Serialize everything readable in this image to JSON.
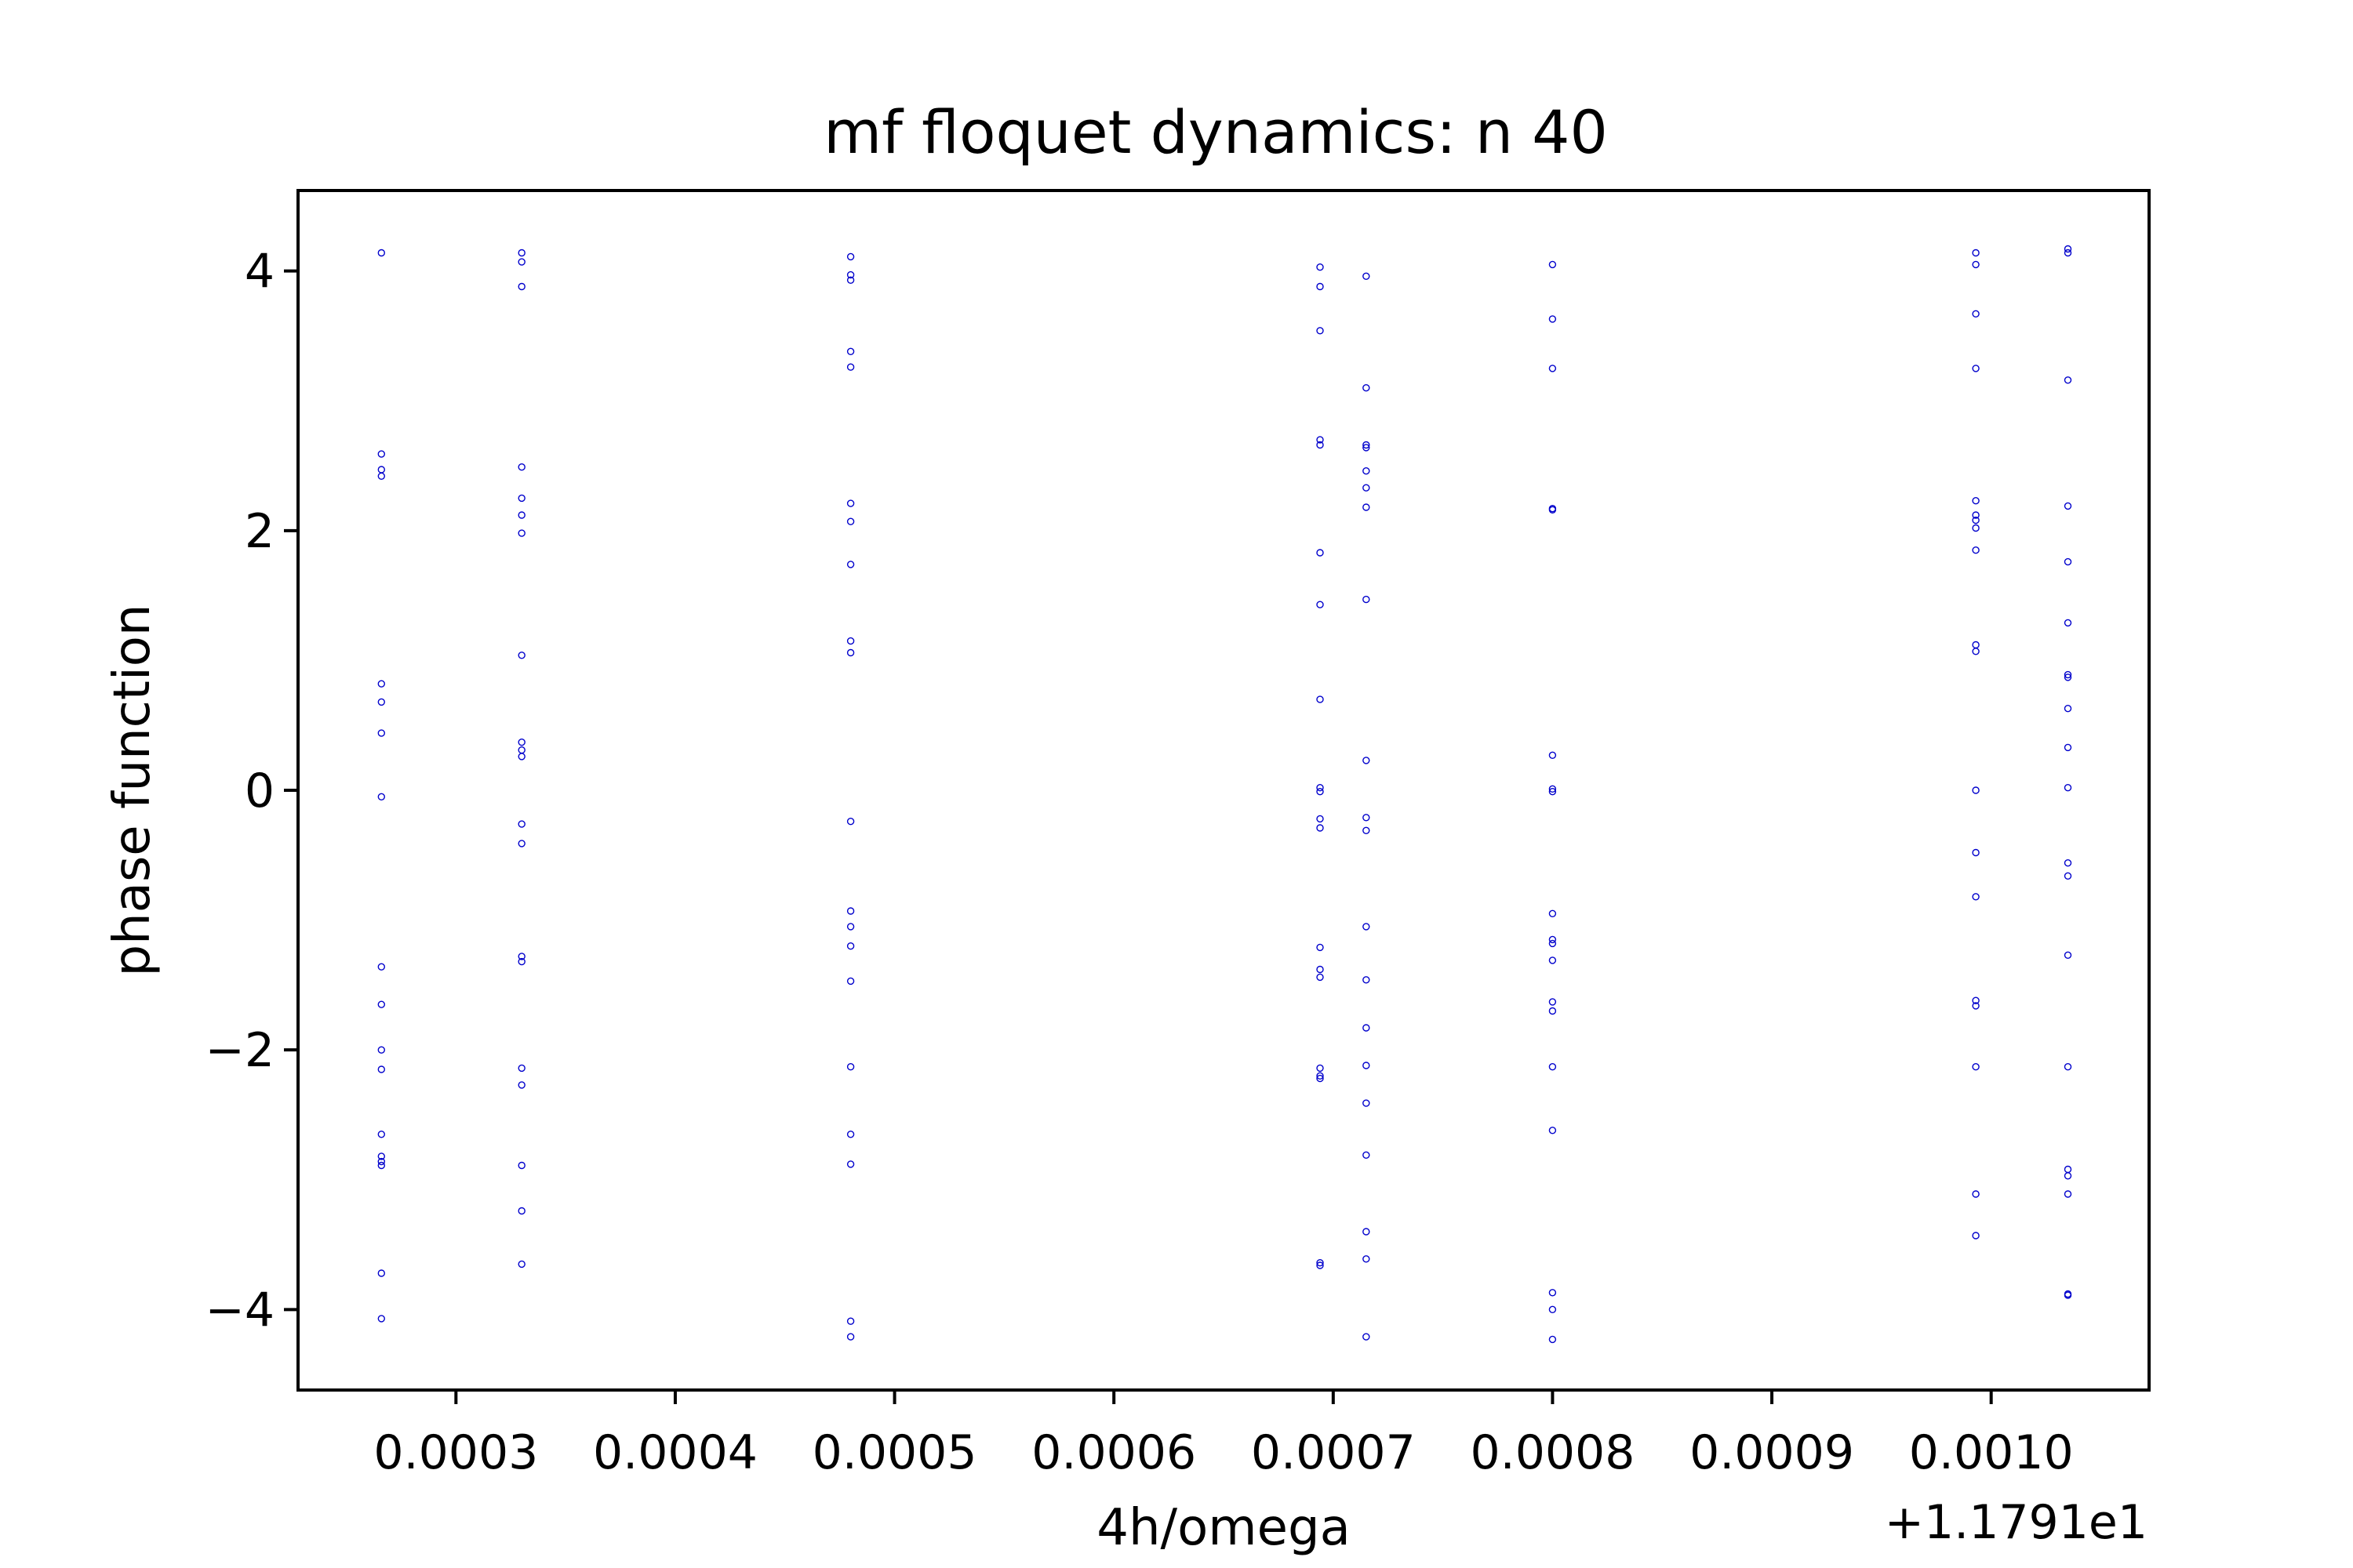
{
  "chart_data": {
    "type": "scatter",
    "title": "mf floquet dynamics: n 40",
    "xlabel": "4h/omega",
    "ylabel": "phase function",
    "x_offset_label": "+1.1791e1",
    "xlim": [
      0.000228,
      0.001072
    ],
    "ylim": [
      -4.62,
      4.62
    ],
    "xticks": [
      0.0003,
      0.0004,
      0.0005,
      0.0006,
      0.0007,
      0.0008,
      0.0009,
      0.001
    ],
    "xtick_labels": [
      "0.0003",
      "0.0004",
      "0.0005",
      "0.0006",
      "0.0007",
      "0.0008",
      "0.0009",
      "0.0010"
    ],
    "yticks": [
      -4,
      -2,
      0,
      2,
      4
    ],
    "ytick_labels": [
      "−4",
      "−2",
      "0",
      "2",
      "4"
    ],
    "grid": false,
    "marker_color": "#0000cc",
    "marker": "hollow-circle",
    "series": [
      {
        "points": [
          [
            0.000266,
            4.14
          ],
          [
            0.000266,
            2.59
          ],
          [
            0.000266,
            2.47
          ],
          [
            0.000266,
            2.42
          ],
          [
            0.000266,
            0.82
          ],
          [
            0.000266,
            0.68
          ],
          [
            0.000266,
            0.44
          ],
          [
            0.000266,
            -0.05
          ],
          [
            0.000266,
            -1.36
          ],
          [
            0.000266,
            -1.65
          ],
          [
            0.000266,
            -2.0
          ],
          [
            0.000266,
            -2.15
          ],
          [
            0.000266,
            -2.65
          ],
          [
            0.000266,
            -2.82
          ],
          [
            0.000266,
            -2.86
          ],
          [
            0.000266,
            -2.89
          ],
          [
            0.000266,
            -3.72
          ],
          [
            0.000266,
            -4.07
          ],
          [
            0.00033,
            4.14
          ],
          [
            0.00033,
            4.07
          ],
          [
            0.00033,
            3.88
          ],
          [
            0.00033,
            2.49
          ],
          [
            0.00033,
            2.25
          ],
          [
            0.00033,
            2.12
          ],
          [
            0.00033,
            1.98
          ],
          [
            0.00033,
            1.04
          ],
          [
            0.00033,
            0.37
          ],
          [
            0.00033,
            0.31
          ],
          [
            0.00033,
            0.26
          ],
          [
            0.00033,
            -0.26
          ],
          [
            0.00033,
            -0.41
          ],
          [
            0.00033,
            -1.28
          ],
          [
            0.00033,
            -1.32
          ],
          [
            0.00033,
            -2.14
          ],
          [
            0.00033,
            -2.27
          ],
          [
            0.00033,
            -2.89
          ],
          [
            0.00033,
            -3.24
          ],
          [
            0.00033,
            -3.65
          ],
          [
            0.00048,
            4.11
          ],
          [
            0.00048,
            3.97
          ],
          [
            0.00048,
            3.93
          ],
          [
            0.00048,
            3.38
          ],
          [
            0.00048,
            3.26
          ],
          [
            0.00048,
            2.21
          ],
          [
            0.00048,
            2.07
          ],
          [
            0.00048,
            1.74
          ],
          [
            0.00048,
            1.15
          ],
          [
            0.00048,
            1.06
          ],
          [
            0.00048,
            -0.24
          ],
          [
            0.00048,
            -0.93
          ],
          [
            0.00048,
            -1.05
          ],
          [
            0.00048,
            -1.2
          ],
          [
            0.00048,
            -1.47
          ],
          [
            0.00048,
            -2.13
          ],
          [
            0.00048,
            -2.65
          ],
          [
            0.00048,
            -2.88
          ],
          [
            0.00048,
            -4.09
          ],
          [
            0.00048,
            -4.21
          ],
          [
            0.000694,
            4.03
          ],
          [
            0.000694,
            3.88
          ],
          [
            0.000694,
            3.54
          ],
          [
            0.000694,
            2.7
          ],
          [
            0.000694,
            2.66
          ],
          [
            0.000694,
            1.83
          ],
          [
            0.000694,
            1.43
          ],
          [
            0.000694,
            0.7
          ],
          [
            0.000694,
            0.02
          ],
          [
            0.000694,
            -0.01
          ],
          [
            0.000694,
            -0.22
          ],
          [
            0.000694,
            -0.29
          ],
          [
            0.000694,
            -1.21
          ],
          [
            0.000694,
            -1.38
          ],
          [
            0.000694,
            -1.44
          ],
          [
            0.000694,
            -2.14
          ],
          [
            0.000694,
            -2.2
          ],
          [
            0.000694,
            -2.22
          ],
          [
            0.000694,
            -3.64
          ],
          [
            0.000694,
            -3.66
          ],
          [
            0.000715,
            3.96
          ],
          [
            0.000715,
            3.1
          ],
          [
            0.000715,
            2.66
          ],
          [
            0.000715,
            2.64
          ],
          [
            0.000715,
            2.46
          ],
          [
            0.000715,
            2.33
          ],
          [
            0.000715,
            2.18
          ],
          [
            0.000715,
            1.47
          ],
          [
            0.000715,
            0.23
          ],
          [
            0.000715,
            -0.21
          ],
          [
            0.000715,
            -0.31
          ],
          [
            0.000715,
            -1.05
          ],
          [
            0.000715,
            -1.46
          ],
          [
            0.000715,
            -1.83
          ],
          [
            0.000715,
            -2.12
          ],
          [
            0.000715,
            -2.41
          ],
          [
            0.000715,
            -2.81
          ],
          [
            0.000715,
            -3.4
          ],
          [
            0.000715,
            -3.61
          ],
          [
            0.000715,
            -4.21
          ],
          [
            0.0008,
            4.05
          ],
          [
            0.0008,
            3.63
          ],
          [
            0.0008,
            3.25
          ],
          [
            0.0008,
            2.17
          ],
          [
            0.0008,
            2.16
          ],
          [
            0.0008,
            0.27
          ],
          [
            0.0008,
            0.01
          ],
          [
            0.0008,
            -0.01
          ],
          [
            0.0008,
            -0.95
          ],
          [
            0.0008,
            -1.15
          ],
          [
            0.0008,
            -1.18
          ],
          [
            0.0008,
            -1.31
          ],
          [
            0.0008,
            -1.63
          ],
          [
            0.0008,
            -1.7
          ],
          [
            0.0008,
            -2.13
          ],
          [
            0.0008,
            -2.62
          ],
          [
            0.0008,
            -3.87
          ],
          [
            0.0008,
            -4.0
          ],
          [
            0.0008,
            -4.23
          ],
          [
            0.000993,
            4.14
          ],
          [
            0.000993,
            4.05
          ],
          [
            0.000993,
            3.67
          ],
          [
            0.000993,
            3.25
          ],
          [
            0.000993,
            2.23
          ],
          [
            0.000993,
            2.12
          ],
          [
            0.000993,
            2.08
          ],
          [
            0.000993,
            2.02
          ],
          [
            0.000993,
            1.85
          ],
          [
            0.000993,
            1.12
          ],
          [
            0.000993,
            1.07
          ],
          [
            0.000993,
            0.0
          ],
          [
            0.000993,
            -0.48
          ],
          [
            0.000993,
            -0.82
          ],
          [
            0.000993,
            -1.62
          ],
          [
            0.000993,
            -1.66
          ],
          [
            0.000993,
            -2.13
          ],
          [
            0.000993,
            -3.11
          ],
          [
            0.000993,
            -3.43
          ],
          [
            0.001035,
            4.17
          ],
          [
            0.001035,
            4.14
          ],
          [
            0.001035,
            3.16
          ],
          [
            0.001035,
            2.19
          ],
          [
            0.001035,
            1.76
          ],
          [
            0.001035,
            1.29
          ],
          [
            0.001035,
            0.89
          ],
          [
            0.001035,
            0.87
          ],
          [
            0.001035,
            0.63
          ],
          [
            0.001035,
            0.33
          ],
          [
            0.001035,
            0.02
          ],
          [
            0.001035,
            -0.56
          ],
          [
            0.001035,
            -0.66
          ],
          [
            0.001035,
            -1.27
          ],
          [
            0.001035,
            -2.13
          ],
          [
            0.001035,
            -2.92
          ],
          [
            0.001035,
            -2.97
          ],
          [
            0.001035,
            -3.11
          ],
          [
            0.001035,
            -3.88
          ],
          [
            0.001035,
            -3.89
          ]
        ]
      }
    ]
  }
}
